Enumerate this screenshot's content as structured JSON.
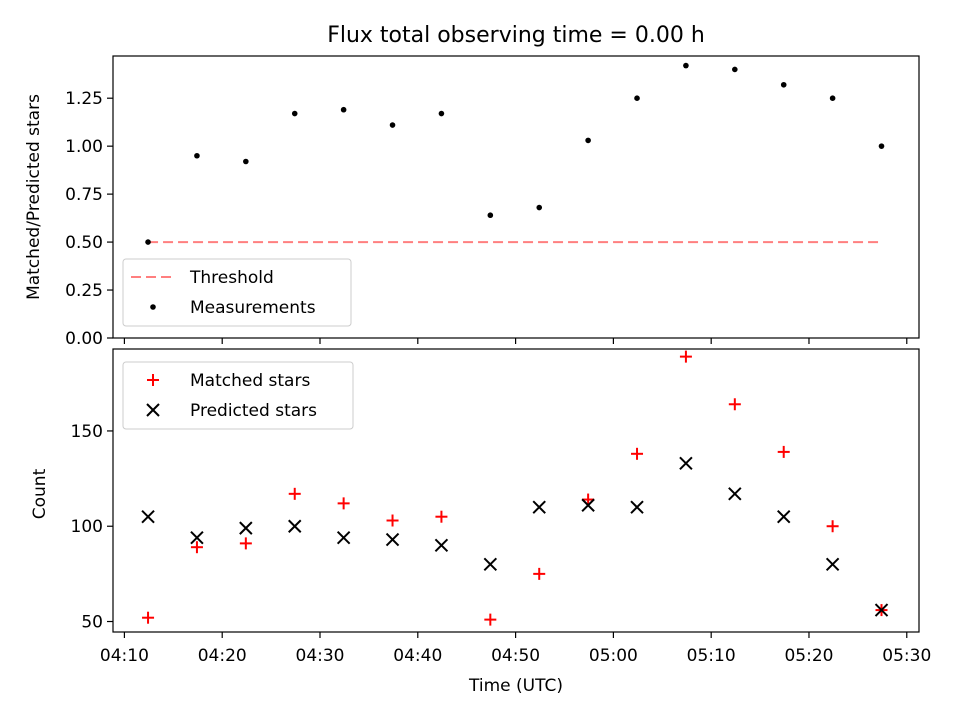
{
  "title": "Flux total observing time = 0.00 h",
  "x_tick_labels": [
    "04:10",
    "04:20",
    "04:30",
    "04:40",
    "04:50",
    "05:00",
    "05:10",
    "05:20",
    "05:30"
  ],
  "chart_data": [
    {
      "type": "scatter",
      "ylabel": "Matched/Predicted stars",
      "xlabel": "",
      "xlim": [
        "04:08:50",
        "05:31:15"
      ],
      "ylim": [
        0,
        1.47
      ],
      "y_ticks": [
        0.0,
        0.25,
        0.5,
        0.75,
        1.0,
        1.25
      ],
      "y_tick_labels": [
        "0.00",
        "0.25",
        "0.50",
        "0.75",
        "1.00",
        "1.25"
      ],
      "grid": false,
      "legend": "lower-left",
      "threshold": {
        "name": "Threshold",
        "value": 0.5,
        "x_start": "04:12:25",
        "x_end": "05:27:25",
        "color": "#ff7f7f",
        "style": "dashed"
      },
      "series": [
        {
          "name": "Measurements",
          "color": "#000000",
          "marker": "dot",
          "x": [
            "04:12:25",
            "04:17:25",
            "04:22:25",
            "04:27:25",
            "04:32:25",
            "04:37:25",
            "04:42:25",
            "04:47:25",
            "04:52:25",
            "04:57:25",
            "05:02:25",
            "05:07:25",
            "05:12:25",
            "05:17:25",
            "05:22:25",
            "05:27:25"
          ],
          "values": [
            0.5,
            0.95,
            0.92,
            1.17,
            1.19,
            1.11,
            1.17,
            0.64,
            0.68,
            1.03,
            1.25,
            1.42,
            1.4,
            1.32,
            1.25,
            1.0
          ]
        }
      ]
    },
    {
      "type": "scatter",
      "ylabel": "Count",
      "xlabel": "Time (UTC)",
      "xlim": [
        "04:08:50",
        "05:31:15"
      ],
      "ylim": [
        44.5,
        193
      ],
      "y_ticks": [
        50,
        100,
        150
      ],
      "y_tick_labels": [
        "50",
        "100",
        "150"
      ],
      "grid": false,
      "legend": "upper-left",
      "series": [
        {
          "name": "Matched stars",
          "color": "#ff0000",
          "marker": "plus",
          "x": [
            "04:12:25",
            "04:17:25",
            "04:22:25",
            "04:27:25",
            "04:32:25",
            "04:37:25",
            "04:42:25",
            "04:47:25",
            "04:52:25",
            "04:57:25",
            "05:02:25",
            "05:07:25",
            "05:12:25",
            "05:17:25",
            "05:22:25",
            "05:27:25"
          ],
          "values": [
            52,
            89,
            91,
            117,
            112,
            103,
            105,
            51,
            75,
            114,
            138,
            189,
            164,
            139,
            100,
            56
          ]
        },
        {
          "name": "Predicted stars",
          "color": "#000000",
          "marker": "x",
          "x": [
            "04:12:25",
            "04:17:25",
            "04:22:25",
            "04:27:25",
            "04:32:25",
            "04:37:25",
            "04:42:25",
            "04:47:25",
            "04:52:25",
            "04:57:25",
            "05:02:25",
            "05:07:25",
            "05:12:25",
            "05:17:25",
            "05:22:25",
            "05:27:25"
          ],
          "values": [
            105,
            94,
            99,
            100,
            94,
            93,
            90,
            80,
            110,
            111,
            110,
            133,
            117,
            105,
            80,
            56
          ]
        }
      ]
    }
  ]
}
